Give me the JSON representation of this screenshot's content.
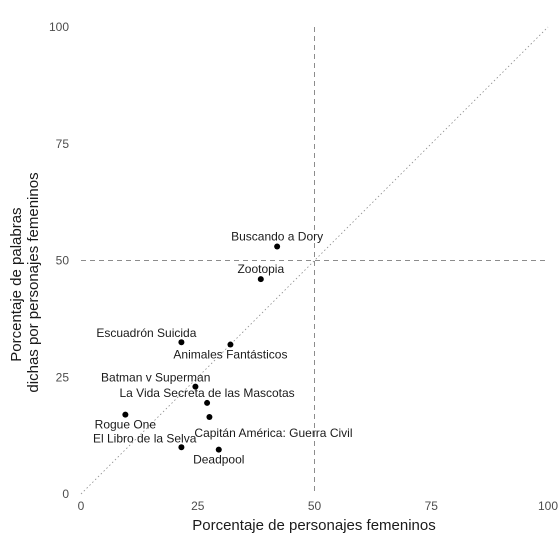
{
  "chart_data": {
    "type": "scatter",
    "title": "",
    "xlabel": "Porcentaje de personajes femeninos",
    "ylabel_lines": [
      "Porcentaje de palabras",
      "dichas por personajes femeninos"
    ],
    "xlim": [
      0,
      100
    ],
    "ylim": [
      0,
      100
    ],
    "xticks": [
      "0",
      "25",
      "50",
      "75",
      "100"
    ],
    "yticks": [
      "0",
      "25",
      "50",
      "75",
      "100"
    ],
    "grid": false,
    "reference_lines": {
      "vertical_x": 50,
      "horizontal_y": 50,
      "diagonal": true
    },
    "point_color": "#000000",
    "reference_color": "#8c8c8c",
    "points": [
      {
        "label": "Buscando a Dory",
        "x": 42,
        "y": 53,
        "label_side": "above"
      },
      {
        "label": "Zootopia",
        "x": 38.5,
        "y": 46,
        "label_side": "above"
      },
      {
        "label": "Escuadrón Suicida",
        "x": 21.5,
        "y": 32.5,
        "label_side": "above-left"
      },
      {
        "label": "Animales Fantásticos",
        "x": 32,
        "y": 32,
        "label_side": "below"
      },
      {
        "label": "Batman v Superman",
        "x": 24.5,
        "y": 23,
        "label_side": "above-left"
      },
      {
        "label": "La Vida Secreta de las Mascotas",
        "x": 27,
        "y": 19.5,
        "label_side": "above"
      },
      {
        "label": "Rogue One",
        "x": 9.5,
        "y": 17,
        "label_side": "below"
      },
      {
        "label": "Capitán América: Guerra Civil",
        "x": 27.5,
        "y": 16.5,
        "label_side": "below-right"
      },
      {
        "label": "El Libro de la Selva",
        "x": 21.5,
        "y": 10,
        "label_side": "above-left"
      },
      {
        "label": "Deadpool",
        "x": 29.5,
        "y": 9.5,
        "label_side": "below"
      }
    ]
  }
}
